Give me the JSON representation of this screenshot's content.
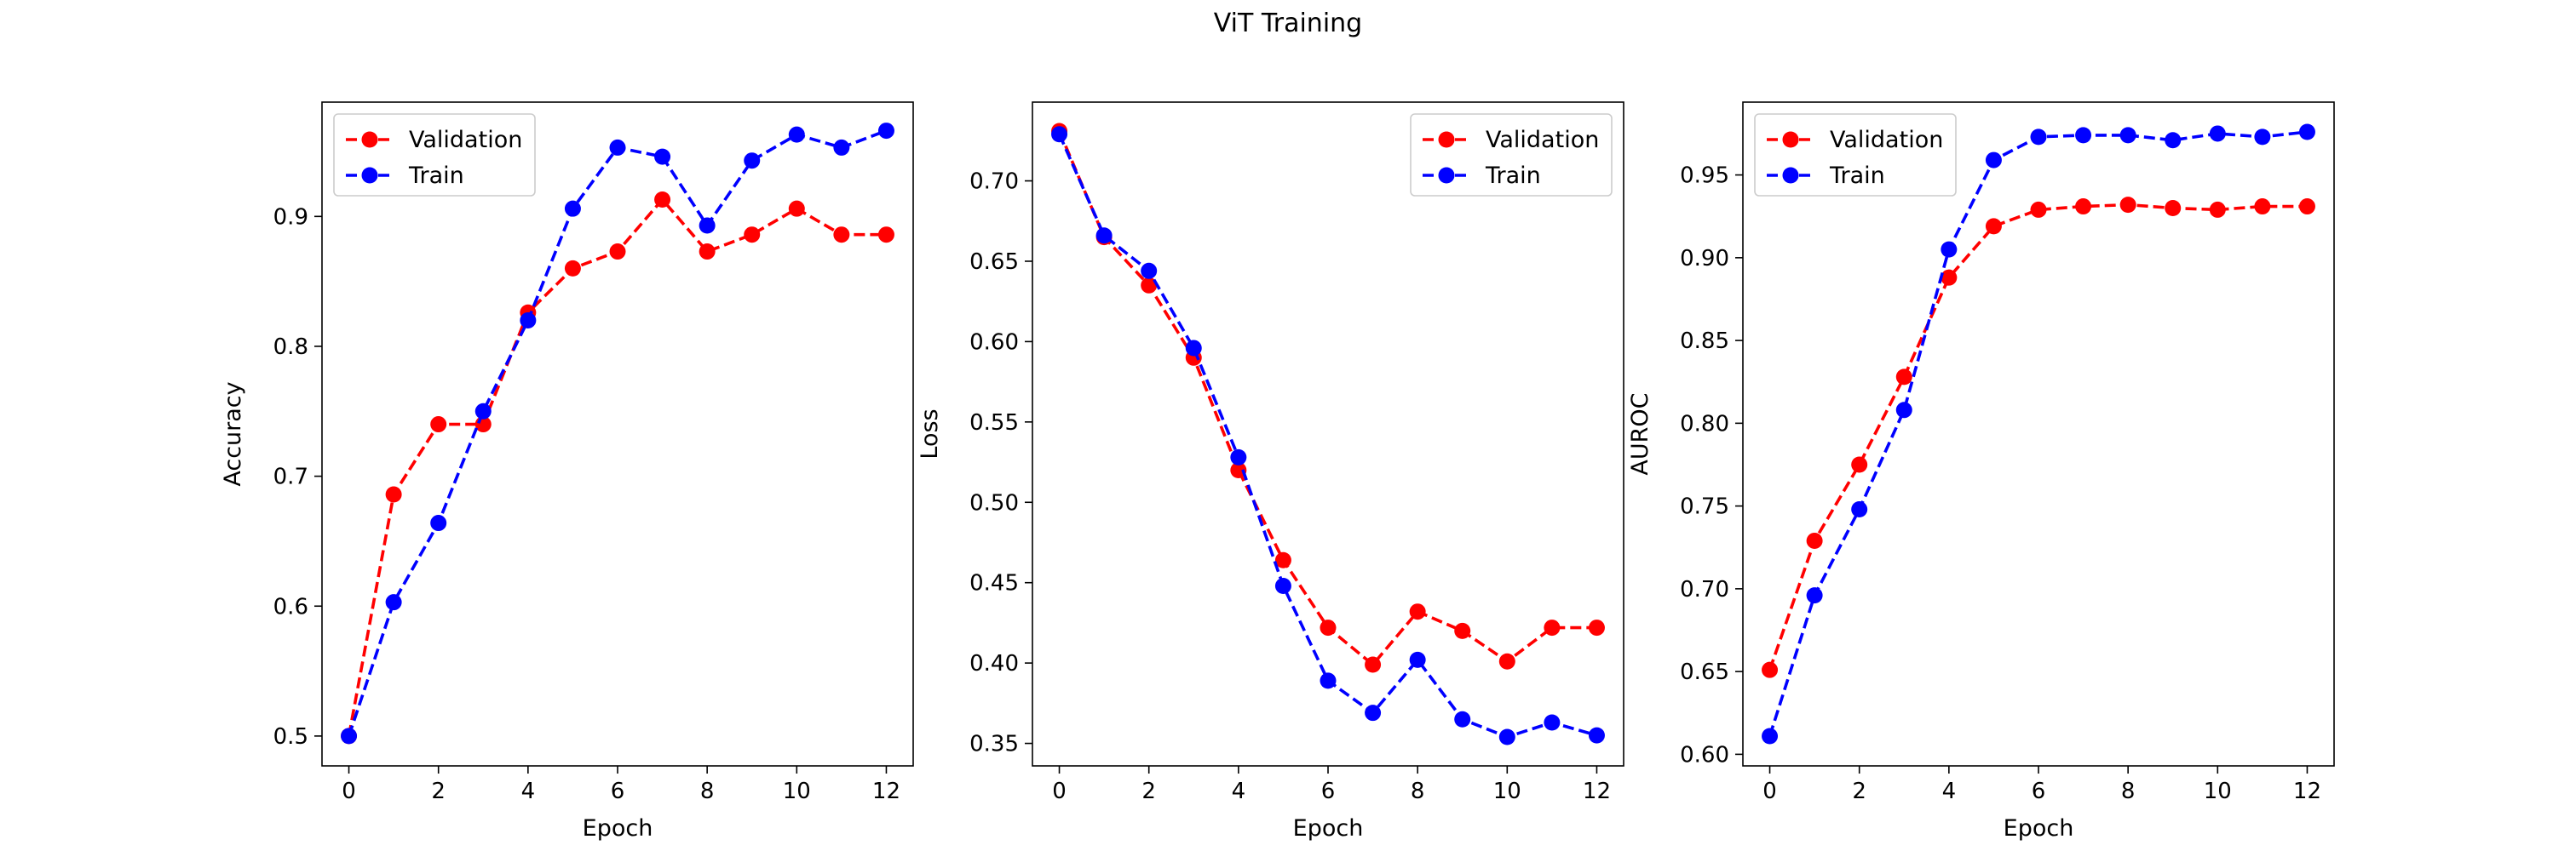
{
  "figure": {
    "title": "ViT Training"
  },
  "colors": {
    "validation": "#ff0000",
    "train": "#0000ff"
  },
  "chart_data": [
    {
      "type": "line",
      "xlabel": "Epoch",
      "ylabel": "Accuracy",
      "xlim": [
        -0.6,
        12.6
      ],
      "ylim": [
        0.477,
        0.988
      ],
      "xticks": [
        0,
        2,
        4,
        6,
        8,
        10,
        12
      ],
      "yticks": [
        0.5,
        0.6,
        0.7,
        0.8,
        0.9
      ],
      "tick_decimals": 1,
      "legend_position": "upper-left",
      "x": [
        0,
        1,
        2,
        3,
        4,
        5,
        6,
        7,
        8,
        9,
        10,
        11,
        12
      ],
      "series": [
        {
          "name": "Validation",
          "color": "#ff0000",
          "values": [
            0.5,
            0.686,
            0.74,
            0.74,
            0.826,
            0.86,
            0.873,
            0.913,
            0.873,
            0.886,
            0.906,
            0.886,
            0.886
          ]
        },
        {
          "name": "Train",
          "color": "#0000ff",
          "values": [
            0.5,
            0.603,
            0.664,
            0.75,
            0.82,
            0.906,
            0.953,
            0.946,
            0.893,
            0.943,
            0.963,
            0.953,
            0.966
          ]
        }
      ]
    },
    {
      "type": "line",
      "xlabel": "Epoch",
      "ylabel": "Loss",
      "xlim": [
        -0.6,
        12.6
      ],
      "ylim": [
        0.336,
        0.749
      ],
      "xticks": [
        0,
        2,
        4,
        6,
        8,
        10,
        12
      ],
      "yticks": [
        0.35,
        0.4,
        0.45,
        0.5,
        0.55,
        0.6,
        0.65,
        0.7
      ],
      "tick_decimals": 2,
      "legend_position": "upper-right",
      "x": [
        0,
        1,
        2,
        3,
        4,
        5,
        6,
        7,
        8,
        9,
        10,
        11,
        12
      ],
      "series": [
        {
          "name": "Validation",
          "color": "#ff0000",
          "values": [
            0.731,
            0.665,
            0.635,
            0.59,
            0.52,
            0.464,
            0.422,
            0.399,
            0.432,
            0.42,
            0.401,
            0.422,
            0.422
          ]
        },
        {
          "name": "Train",
          "color": "#0000ff",
          "values": [
            0.729,
            0.666,
            0.644,
            0.596,
            0.528,
            0.448,
            0.389,
            0.369,
            0.402,
            0.365,
            0.354,
            0.363,
            0.355
          ]
        }
      ]
    },
    {
      "type": "line",
      "xlabel": "Epoch",
      "ylabel": "AUROC",
      "xlim": [
        -0.6,
        12.6
      ],
      "ylim": [
        0.593,
        0.994
      ],
      "xticks": [
        0,
        2,
        4,
        6,
        8,
        10,
        12
      ],
      "yticks": [
        0.6,
        0.65,
        0.7,
        0.75,
        0.8,
        0.85,
        0.9,
        0.95
      ],
      "tick_decimals": 2,
      "legend_position": "upper-left",
      "x": [
        0,
        1,
        2,
        3,
        4,
        5,
        6,
        7,
        8,
        9,
        10,
        11,
        12
      ],
      "series": [
        {
          "name": "Validation",
          "color": "#ff0000",
          "values": [
            0.651,
            0.729,
            0.775,
            0.828,
            0.888,
            0.919,
            0.929,
            0.931,
            0.932,
            0.93,
            0.929,
            0.931,
            0.931
          ]
        },
        {
          "name": "Train",
          "color": "#0000ff",
          "values": [
            0.611,
            0.696,
            0.748,
            0.808,
            0.905,
            0.959,
            0.973,
            0.974,
            0.974,
            0.971,
            0.975,
            0.973,
            0.976
          ]
        }
      ]
    }
  ]
}
